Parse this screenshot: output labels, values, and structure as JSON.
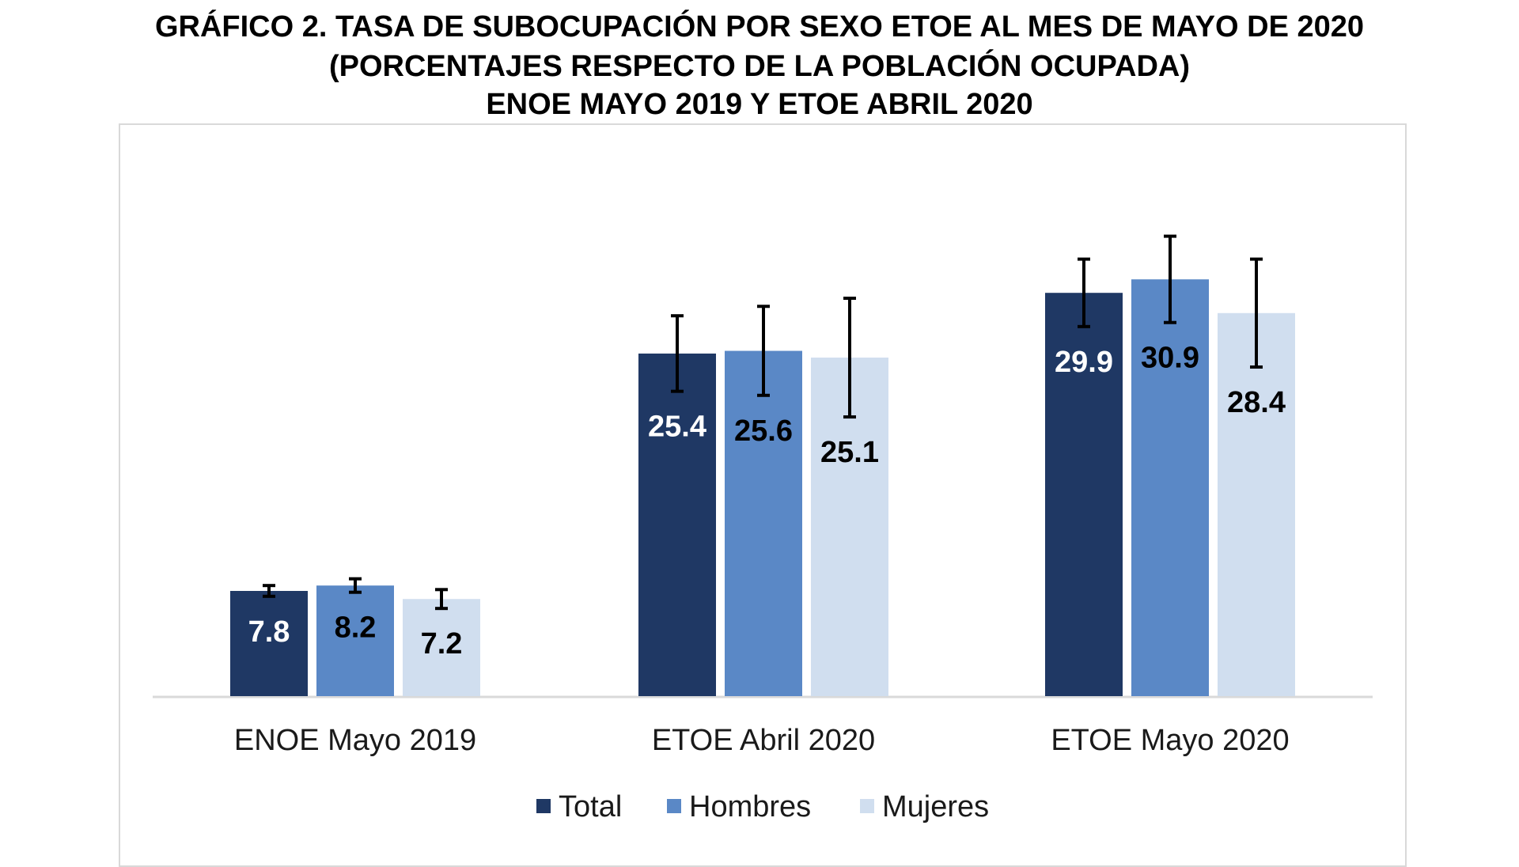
{
  "chart_data": {
    "type": "bar",
    "title_line1": "GRÁFICO 2. TASA DE SUBOCUPACIÓN POR SEXO ETOE AL MES DE MAYO DE 2020",
    "title_line2": "(PORCENTAJES RESPECTO DE LA POBLACIÓN OCUPADA)",
    "title_line3": "ENOE MAYO 2019 Y ETOE ABRIL 2020",
    "xlabel": "",
    "ylabel": "",
    "ylim": [
      0,
      40
    ],
    "grid": false,
    "legend_position": "bottom-center",
    "categories": [
      "ENOE Mayo 2019",
      "ETOE Abril 2020",
      "ETOE Mayo 2020"
    ],
    "series": [
      {
        "name": "Total",
        "color": "#1f3864",
        "label_color": "#ffffff",
        "values": [
          7.8,
          25.4,
          29.9
        ],
        "error": [
          0.4,
          2.8,
          2.5
        ]
      },
      {
        "name": "Hombres",
        "color": "#5a88c6",
        "label_color": "#000000",
        "values": [
          8.2,
          25.6,
          30.9
        ],
        "error": [
          0.5,
          3.3,
          3.2
        ]
      },
      {
        "name": "Mujeres",
        "color": "#d0deef",
        "label_color": "#000000",
        "values": [
          7.2,
          25.1,
          28.4
        ],
        "error": [
          0.7,
          4.4,
          4.0
        ]
      }
    ]
  }
}
